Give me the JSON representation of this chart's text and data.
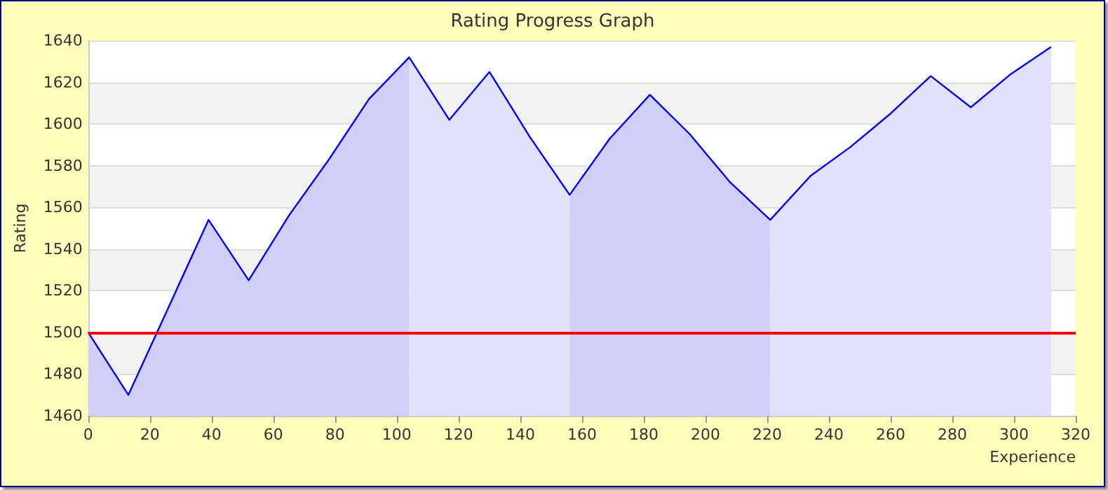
{
  "chart_data": {
    "type": "area",
    "title": "Rating Progress Graph",
    "xlabel": "Experience",
    "ylabel": "Rating",
    "xlim": [
      0,
      320
    ],
    "xticks": [
      0,
      20,
      40,
      60,
      80,
      100,
      120,
      140,
      160,
      180,
      200,
      220,
      240,
      260,
      280,
      300,
      320
    ],
    "ylim": [
      1460,
      1640
    ],
    "yticks": [
      1460,
      1480,
      1500,
      1520,
      1540,
      1560,
      1580,
      1600,
      1620,
      1640
    ],
    "grid": "y",
    "marker": "none",
    "line_style": "solid",
    "ref_lines": [
      {
        "axis": "y",
        "value": 1500,
        "color": "#ff0000"
      }
    ],
    "series": [
      {
        "color": "#cfcffa",
        "x": [
          0,
          13,
          26,
          39,
          52,
          65,
          78,
          91,
          104
        ],
        "values": [
          1500,
          1470,
          1512,
          1554,
          1525,
          1556,
          1583,
          1612,
          1632
        ]
      },
      {
        "color": "#e1e1fa",
        "x": [
          104,
          117,
          130,
          143,
          156
        ],
        "values": [
          1632,
          1602,
          1625,
          1594,
          1566
        ]
      },
      {
        "color": "#cfcffa",
        "x": [
          156,
          169,
          182,
          195,
          208,
          221
        ],
        "values": [
          1566,
          1593,
          1614,
          1595,
          1572,
          1554
        ]
      },
      {
        "color": "#e1e1fa",
        "x": [
          221,
          234,
          247,
          260,
          273,
          286,
          299,
          312
        ],
        "values": [
          1554,
          1575,
          1589,
          1605,
          1623,
          1608,
          1624,
          1637
        ]
      },
      {
        "type": "line",
        "color": "#0000ff",
        "x": [
          0,
          13,
          26,
          39,
          52,
          65,
          78,
          91,
          104,
          117,
          130,
          143,
          156,
          169,
          182,
          195,
          208,
          221,
          234,
          247,
          260,
          273,
          286,
          299,
          312
        ],
        "values": [
          1500,
          1470,
          1512,
          1554,
          1525,
          1556,
          1583,
          1612,
          1632,
          1602,
          1625,
          1594,
          1566,
          1593,
          1614,
          1595,
          1572,
          1554,
          1575,
          1589,
          1605,
          1623,
          1608,
          1624,
          1637
        ]
      }
    ]
  }
}
